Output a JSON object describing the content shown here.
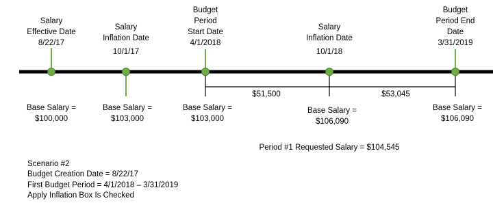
{
  "events": [
    {
      "title_lines": [
        "Salary",
        "Effective Date"
      ],
      "date": "8/22/17",
      "base_salary_label": "Base Salary =",
      "base_salary": "$100,000"
    },
    {
      "title_lines": [
        "Salary",
        "Inflation Date"
      ],
      "date": "10/1/17",
      "base_salary_label": "Base Salary =",
      "base_salary": "$103,000"
    },
    {
      "title_lines": [
        "Budget",
        "Period",
        "Start Date"
      ],
      "date": "4/1/2018",
      "base_salary_label": "Base Salary =",
      "base_salary": "$103,000"
    },
    {
      "title_lines": [
        "Salary",
        "Inflation Date"
      ],
      "date": "10/1/18",
      "base_salary_label": "Base Salary =",
      "base_salary": "$106,090"
    },
    {
      "title_lines": [
        "Budget",
        "Period End",
        "Date"
      ],
      "date": "3/31/2019",
      "base_salary_label": "Base Salary =",
      "base_salary": "$106,090"
    }
  ],
  "intervals": [
    "$51,500",
    "$53,045"
  ],
  "requested_salary": "Period #1 Requested Salary = $104,545",
  "notes": [
    "Scenario #2",
    "Budget Creation Date = 8/22/17",
    "First Budget Period = 4/1/2018 – 3/31/2019",
    "Apply Inflation Box Is Checked"
  ]
}
